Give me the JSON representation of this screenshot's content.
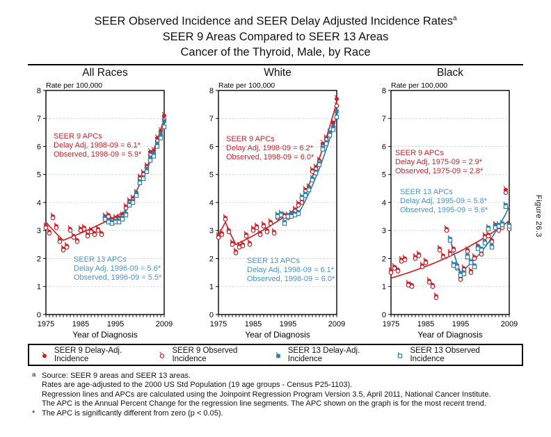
{
  "title": {
    "line1": "SEER Observed Incidence and SEER Delay Adjusted Incidence Rates",
    "line1_sup": "a",
    "line2": "SEER 9 Areas Compared to SEER 13 Areas",
    "line3": "Cancer of the Thyroid, Male, by Race"
  },
  "figure_label": "Figure 26.3",
  "colors": {
    "seer9": "#cc2128",
    "seer13": "#2f7fa8",
    "seer9_text": "#cc2128",
    "seer13_text": "#4a94cc",
    "grid": "#c4d3de",
    "axis": "#000000"
  },
  "axis": {
    "rate_label": "Rate per 100,000",
    "xlabel": "Year of Diagnosis",
    "x_range": [
      1975,
      2009
    ],
    "y_range": [
      0,
      8
    ],
    "y_ticks": [
      0,
      1,
      2,
      3,
      4,
      5,
      6,
      7,
      8
    ],
    "x_tick_labels": [
      1975,
      1985,
      1995,
      2009
    ],
    "grid_lines": [
      1,
      2,
      3,
      4,
      5,
      6,
      7
    ]
  },
  "legend": [
    {
      "marker": "circle-filled",
      "color": "seer9",
      "label": "SEER 9 Delay-Adj. Incidence"
    },
    {
      "marker": "circle-open",
      "color": "seer9",
      "label": "SEER 9 Observed Incidence"
    },
    {
      "marker": "square-filled",
      "color": "seer13",
      "label": "SEER 13 Delay-Adj. Incidence"
    },
    {
      "marker": "square-open",
      "color": "seer13",
      "label": "SEER 13 Observed Incidence"
    }
  ],
  "footnotes": [
    {
      "marker": "a",
      "text": "Source: SEER 9 areas and SEER 13 areas."
    },
    {
      "marker": "",
      "text": "Rates are age-adjusted to the 2000 US Std Population (19 age groups - Census P25-1103)."
    },
    {
      "marker": "",
      "text": "Regression lines and APCs are calculated using the Joinpoint Regression Program Version 3.5, April 2011, National Cancer Institute."
    },
    {
      "marker": "",
      "text": "The APC is the Annual Percent Change for the regression line segments. The APC shown on the graph is for the most recent trend."
    },
    {
      "marker": "*",
      "text": "The APC is significantly different from zero (p < 0.05)."
    }
  ],
  "chart_data": [
    {
      "type": "scatter-line",
      "title": "All Races",
      "seer9_annotation": {
        "header": "SEER 9 APCs",
        "line1": "Delay Adj, 1998-09 = 6.1*",
        "line2": "Observed, 1998-09 = 5.9*"
      },
      "seer13_annotation": {
        "header": "SEER 13 APCs",
        "line1": "Delay Adj, 1996-09 = 5.6*",
        "line2": "Observed, 1996-09 = 5.5*"
      },
      "series": [
        {
          "label": "SEER 9 Delay-Adj. Incidence",
          "marker": "circle-filled",
          "color": "seer9",
          "start_year": 1975,
          "values": [
            3.15,
            2.95,
            3.5,
            3.15,
            2.65,
            2.35,
            2.45,
            3.05,
            2.8,
            2.65,
            3.05,
            3.1,
            2.85,
            3.0,
            2.9,
            3.05,
            2.9,
            3.5,
            3.55,
            3.4,
            3.45,
            3.45,
            3.55,
            3.85,
            4.05,
            4.15,
            4.35,
            4.9,
            5.05,
            5.3,
            5.8,
            5.85,
            6.3,
            6.55,
            7.1
          ]
        },
        {
          "label": "SEER 9 Observed Incidence",
          "marker": "circle-open",
          "color": "seer9",
          "start_year": 1975,
          "values": [
            3.1,
            2.9,
            3.45,
            3.1,
            2.6,
            2.3,
            2.4,
            3.0,
            2.75,
            2.6,
            3.0,
            3.05,
            2.8,
            2.95,
            2.85,
            3.0,
            2.85,
            3.45,
            3.5,
            3.35,
            3.4,
            3.4,
            3.5,
            3.8,
            4.0,
            4.1,
            4.3,
            4.85,
            5.0,
            5.25,
            5.7,
            5.75,
            6.2,
            6.4,
            6.95
          ]
        },
        {
          "label": "SEER 13 Delay-Adj. Incidence",
          "marker": "square-filled",
          "color": "seer13",
          "start_year": 1992,
          "values": [
            3.45,
            3.35,
            3.3,
            3.35,
            3.35,
            3.45,
            3.6,
            3.95,
            4.05,
            4.3,
            4.75,
            4.9,
            5.2,
            5.6,
            5.75,
            6.1,
            6.45,
            6.9
          ]
        },
        {
          "label": "SEER 13 Observed Incidence",
          "marker": "square-open",
          "color": "seer13",
          "start_year": 1992,
          "values": [
            3.4,
            3.3,
            3.25,
            3.3,
            3.3,
            3.4,
            3.55,
            3.9,
            4.0,
            4.25,
            4.7,
            4.85,
            5.1,
            5.5,
            5.65,
            6.0,
            6.3,
            6.7
          ]
        }
      ],
      "trends": [
        {
          "color": "seer9",
          "joinpoints": [
            [
              1975,
              3.3
            ],
            [
              1980,
              2.65
            ],
            [
              1998,
              3.7
            ],
            [
              2009,
              7.0
            ]
          ]
        },
        {
          "color": "seer13",
          "joinpoints": [
            [
              1992,
              3.3
            ],
            [
              1996,
              3.35
            ],
            [
              2009,
              6.8
            ]
          ]
        }
      ]
    },
    {
      "type": "scatter-line",
      "title": "White",
      "seer9_annotation": {
        "header": "SEER 9 APCs",
        "line1": "Delay Adj, 1998-09 = 6.2*",
        "line2": "Observed, 1998-09 = 6.0*"
      },
      "seer13_annotation": {
        "header": "SEER 13 APCs",
        "line1": "Delay Adj, 1998-09 = 6.1*",
        "line2": "Observed, 1998-09 = 6.0*"
      },
      "series": [
        {
          "label": "SEER 9 Delay-Adj. Incidence",
          "marker": "circle-filled",
          "color": "seer9",
          "start_year": 1975,
          "values": [
            2.8,
            2.9,
            3.45,
            3.0,
            2.55,
            2.25,
            2.45,
            2.5,
            2.85,
            2.55,
            3.05,
            3.15,
            2.9,
            3.2,
            3.0,
            3.3,
            2.95,
            3.5,
            3.6,
            3.55,
            3.5,
            3.6,
            3.75,
            3.95,
            4.05,
            4.45,
            4.55,
            5.15,
            5.25,
            5.5,
            6.1,
            6.3,
            6.5,
            6.85,
            7.7
          ]
        },
        {
          "label": "SEER 9 Observed Incidence",
          "marker": "circle-open",
          "color": "seer9",
          "start_year": 1975,
          "values": [
            2.75,
            2.85,
            3.4,
            2.95,
            2.5,
            2.2,
            2.4,
            2.45,
            2.8,
            2.5,
            3.0,
            3.1,
            2.85,
            3.15,
            2.95,
            3.25,
            2.9,
            3.45,
            3.55,
            3.5,
            3.45,
            3.55,
            3.7,
            3.9,
            4.0,
            4.4,
            4.5,
            5.1,
            5.2,
            5.45,
            6.0,
            6.25,
            6.4,
            6.7,
            7.45
          ]
        },
        {
          "label": "SEER 13 Delay-Adj. Incidence",
          "marker": "square-filled",
          "color": "seer13",
          "start_year": 1992,
          "values": [
            3.55,
            3.6,
            3.3,
            3.55,
            3.55,
            3.6,
            3.65,
            4.2,
            4.3,
            4.5,
            4.85,
            5.1,
            5.4,
            5.95,
            6.15,
            6.5,
            6.7,
            7.25
          ]
        },
        {
          "label": "SEER 13 Observed Incidence",
          "marker": "square-open",
          "color": "seer13",
          "start_year": 1992,
          "values": [
            3.5,
            3.55,
            3.25,
            3.5,
            3.5,
            3.55,
            3.6,
            4.15,
            4.25,
            4.45,
            4.8,
            5.05,
            5.35,
            5.9,
            6.1,
            6.4,
            6.6,
            7.05
          ]
        }
      ],
      "trends": [
        {
          "color": "seer9",
          "joinpoints": [
            [
              1975,
              2.85
            ],
            [
              1977,
              3.3
            ],
            [
              1980,
              2.5
            ],
            [
              1998,
              3.85
            ],
            [
              2009,
              7.6
            ]
          ]
        },
        {
          "color": "seer13",
          "joinpoints": [
            [
              1992,
              3.45
            ],
            [
              1998,
              3.6
            ],
            [
              2009,
              7.1
            ]
          ]
        }
      ]
    },
    {
      "type": "scatter-line",
      "title": "Black",
      "seer9_annotation": {
        "header": "SEER 9 APCs",
        "line1": "Delay Adj, 1975-09 = 2.9*",
        "line2": "Observed, 1975-09 = 2.8*"
      },
      "seer13_annotation": {
        "header": "SEER 13 APCs",
        "line1": "Delay Adj, 1995-09 = 5.8*",
        "line2": "Observed, 1995-09 = 5.6*"
      },
      "series": [
        {
          "label": "SEER 9 Delay-Adj. Incidence",
          "marker": "circle-filled",
          "color": "seer9",
          "start_year": 1975,
          "values": [
            1.55,
            1.7,
            1.6,
            1.95,
            2.0,
            1.1,
            1.05,
            2.05,
            2.15,
            1.75,
            1.9,
            1.2,
            1.05,
            0.65,
            2.35,
            2.1,
            3.05,
            2.2,
            2.35,
            1.7,
            1.3,
            1.65,
            2.3,
            1.55,
            2.05,
            2.45,
            2.2,
            2.8,
            2.85,
            2.65,
            3.2,
            3.05,
            3.15,
            4.45,
            3.1
          ]
        },
        {
          "label": "SEER 9 Observed Incidence",
          "marker": "circle-open",
          "color": "seer9",
          "start_year": 1975,
          "values": [
            1.5,
            1.65,
            1.55,
            1.9,
            1.95,
            1.05,
            1.0,
            2.0,
            2.1,
            1.7,
            1.85,
            1.15,
            1.0,
            0.6,
            2.3,
            2.05,
            3.0,
            2.15,
            2.3,
            1.65,
            1.25,
            1.6,
            2.25,
            1.5,
            2.0,
            2.4,
            2.15,
            2.75,
            2.8,
            2.6,
            3.15,
            3.0,
            3.1,
            4.35,
            3.05
          ]
        },
        {
          "label": "SEER 13 Delay-Adj. Incidence",
          "marker": "square-filled",
          "color": "seer13",
          "start_year": 1992,
          "values": [
            2.7,
            1.8,
            1.75,
            1.45,
            1.5,
            2.1,
            1.9,
            1.75,
            2.4,
            2.35,
            2.6,
            3.1,
            2.45,
            3.15,
            3.2,
            3.25,
            3.9,
            3.2
          ]
        },
        {
          "label": "SEER 13 Observed Incidence",
          "marker": "square-open",
          "color": "seer13",
          "start_year": 1992,
          "values": [
            2.65,
            1.75,
            1.7,
            1.4,
            1.45,
            2.05,
            1.85,
            1.7,
            2.35,
            2.3,
            2.55,
            3.05,
            2.4,
            3.1,
            3.15,
            3.2,
            3.85,
            3.15
          ]
        }
      ],
      "trends": [
        {
          "color": "seer9",
          "joinpoints": [
            [
              1975,
              1.3
            ],
            [
              2009,
              3.35
            ]
          ]
        },
        {
          "color": "seer13",
          "joinpoints": [
            [
              1992,
              2.7
            ],
            [
              1995,
              1.5
            ],
            [
              2009,
              3.85
            ]
          ]
        }
      ]
    }
  ]
}
